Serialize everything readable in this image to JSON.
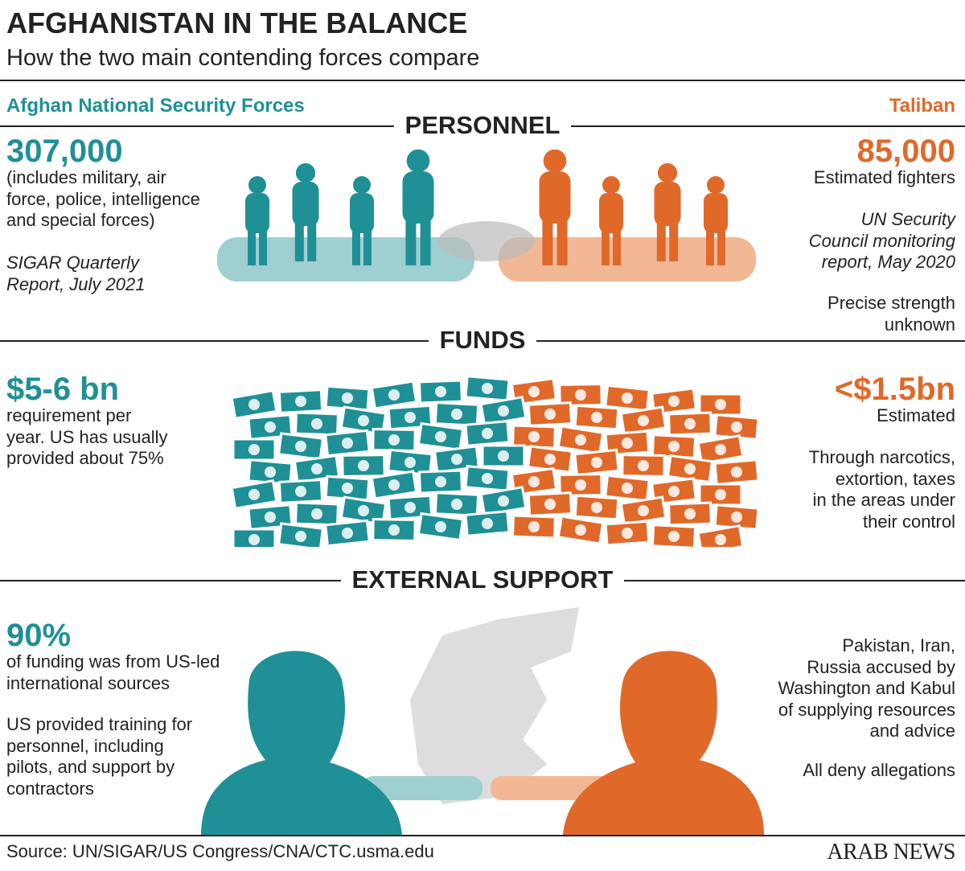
{
  "header": {
    "title": "AFGHANISTAN IN THE BALANCE",
    "subtitle": "How the two main contending forces compare"
  },
  "sides": {
    "left": "Afghan National Security Forces",
    "right": "Taliban"
  },
  "personnel": {
    "heading": "PERSONNEL",
    "left": {
      "figure": "307,000",
      "lines": [
        "(includes military, air",
        "force, police, intelligence",
        "and special forces)"
      ],
      "source": [
        "SIGAR Quarterly",
        "Report, July 2021"
      ]
    },
    "right": {
      "figure": "85,000",
      "lines": [
        "Estimated  fighters"
      ],
      "source": [
        "UN Security",
        "Council monitoring",
        "report, May 2020"
      ],
      "note": [
        "Precise strength",
        "unknown"
      ]
    }
  },
  "funds": {
    "heading": "FUNDS",
    "left": {
      "figure": "$5-6 bn",
      "lines": [
        "requirement per",
        "year. US has usually",
        "provided about 75%"
      ]
    },
    "right": {
      "figure": "<$1.5bn",
      "lines": [
        "Estimated"
      ],
      "note": [
        "Through narcotics,",
        "extortion, taxes",
        "in the areas under",
        "their control"
      ]
    }
  },
  "support": {
    "heading": "EXTERNAL SUPPORT",
    "left": {
      "figure": "90%",
      "lines": [
        "of funding was from US-led",
        "international sources"
      ],
      "note": [
        "US provided training for",
        "personnel, including",
        "pilots, and support by",
        "contractors"
      ]
    },
    "right": {
      "lines": [
        "Pakistan, Iran,",
        "Russia accused by",
        "Washington and Kabul",
        "of supplying resources",
        "and advice"
      ],
      "note": [
        "All deny allegations"
      ]
    }
  },
  "footer": {
    "source": "Source: UN/SIGAR/US Congress/CNA/CTC.usma.edu",
    "brand": "ARAB NEWS"
  }
}
